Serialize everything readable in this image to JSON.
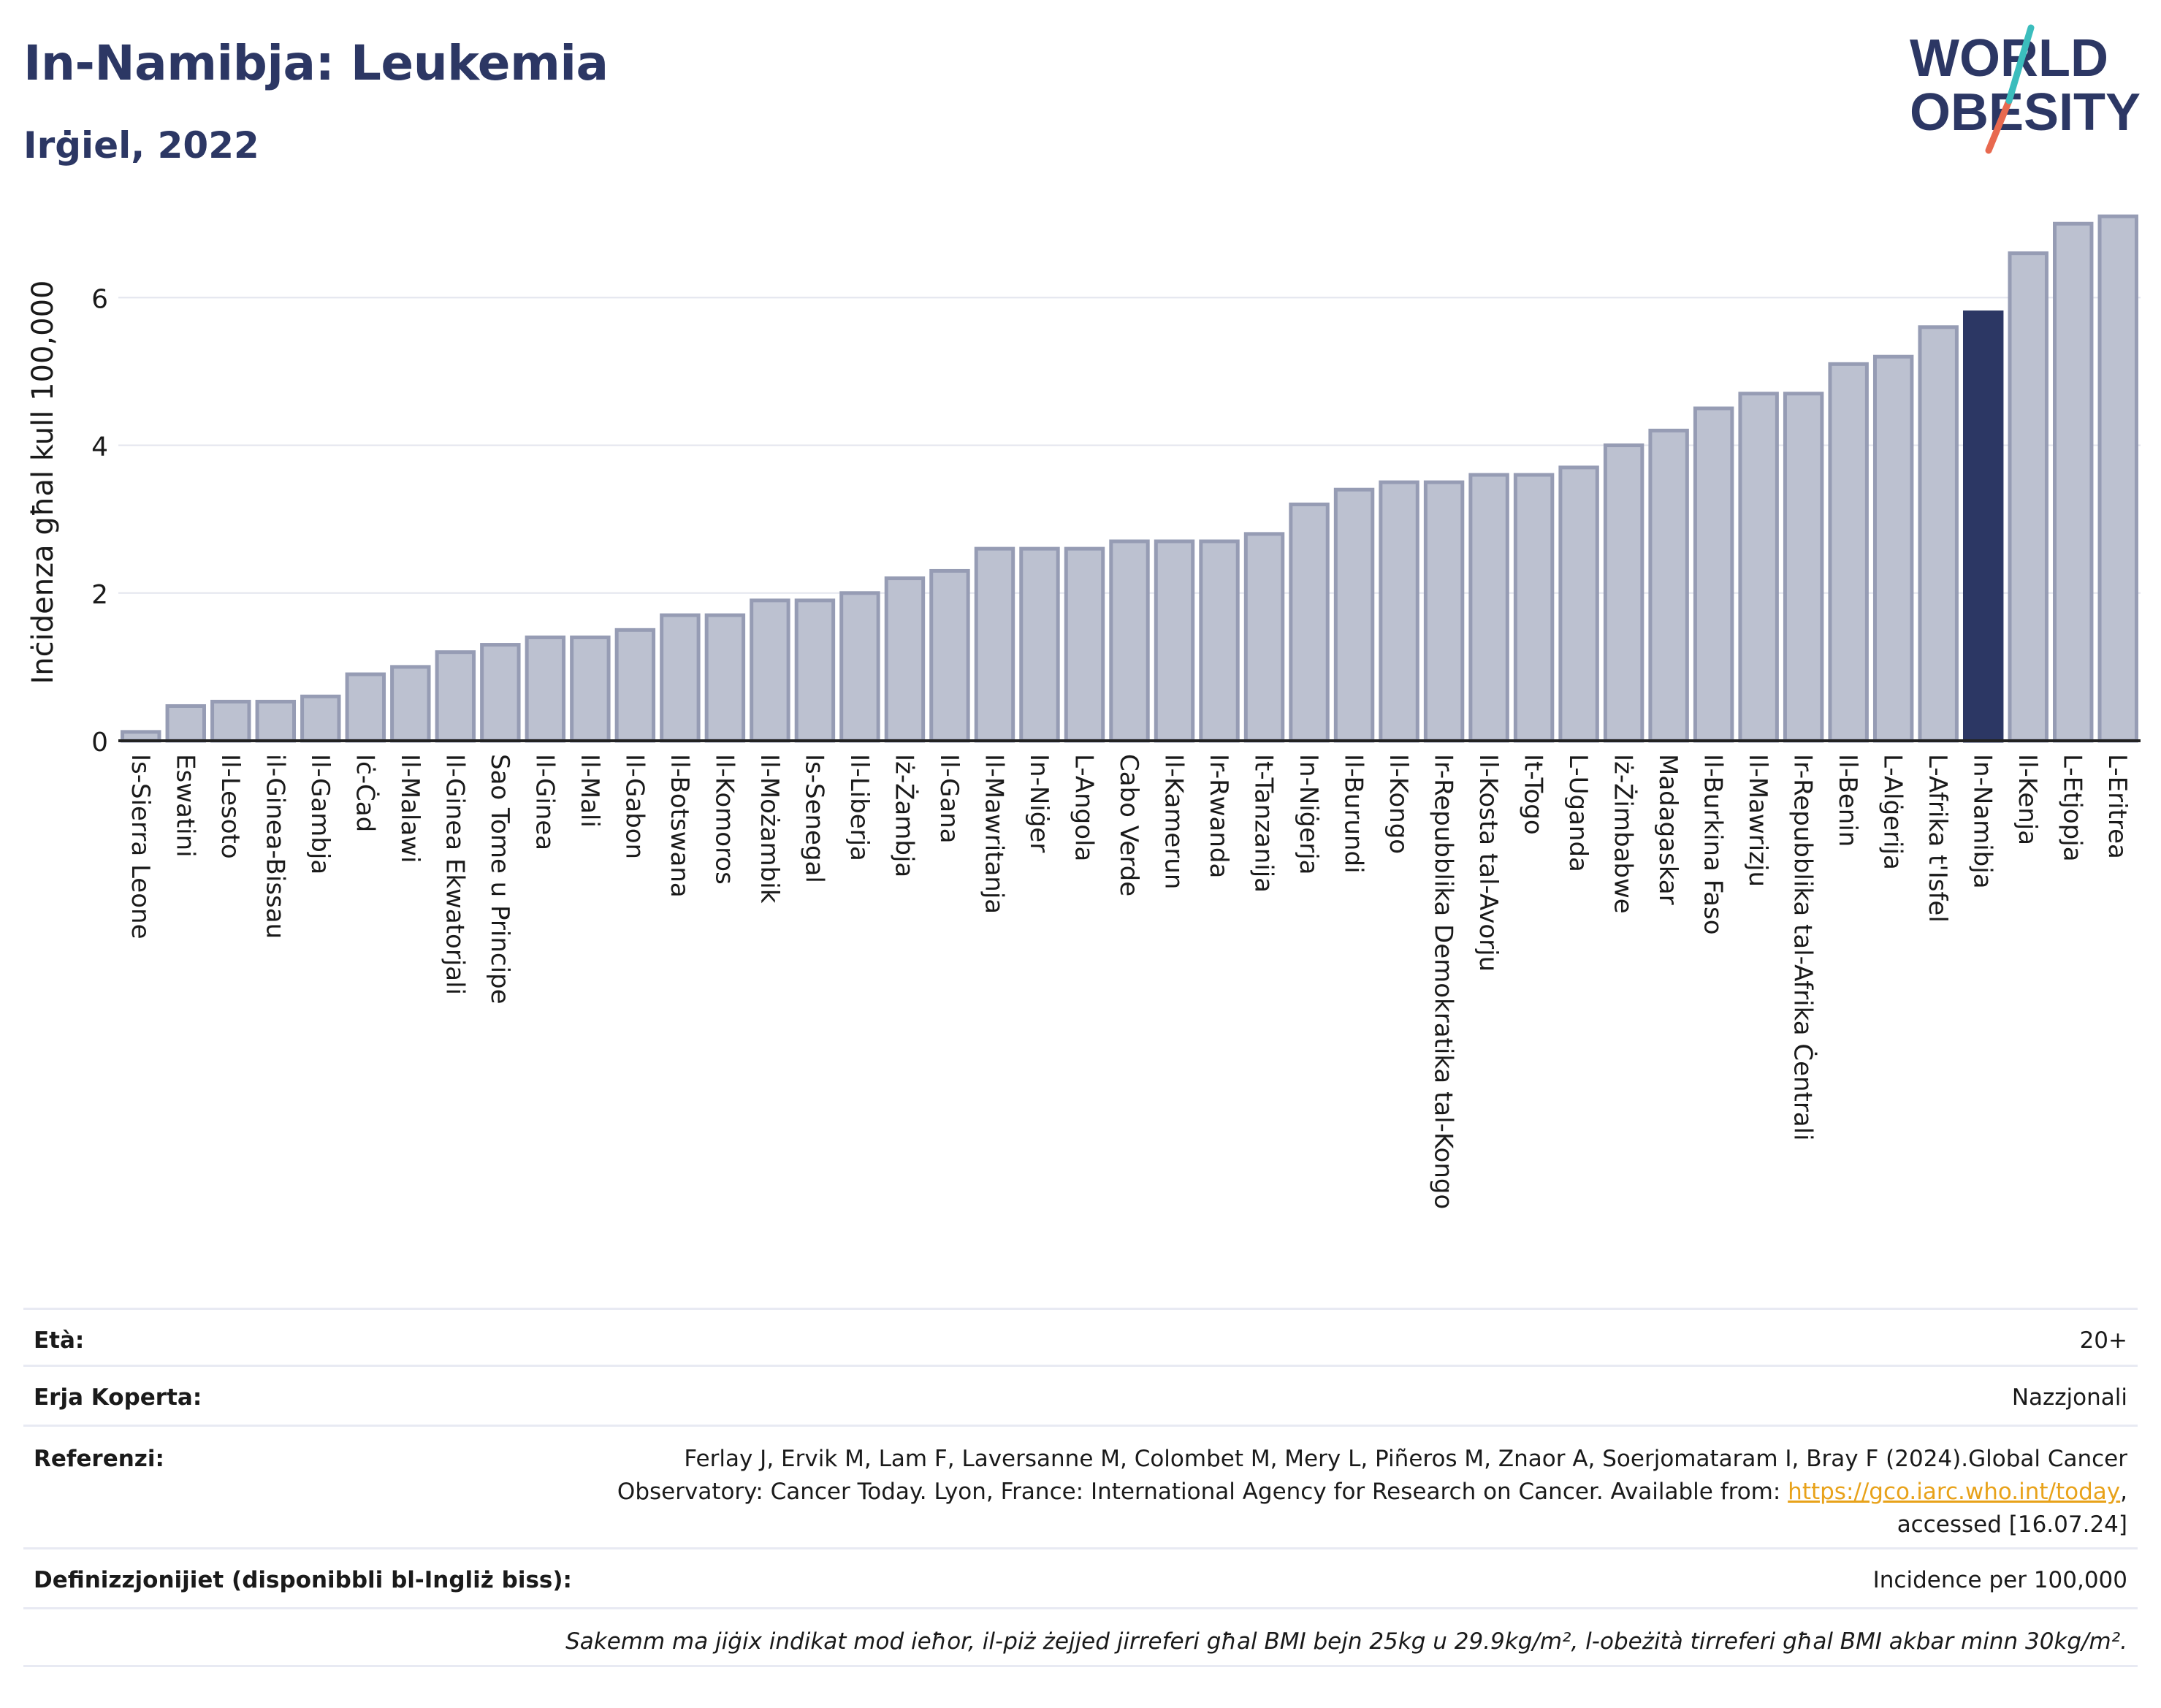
{
  "title": "In-Namibja: Leukemia",
  "subtitle": "Irġiel, 2022",
  "logo": {
    "line1": "WORLD",
    "line2": "OBESITY"
  },
  "colors": {
    "bar": "#bcc1d0",
    "bar_stroke": "#969cb4",
    "highlight": "#2c3764",
    "text": "#2c3764",
    "logo_slash_red": "#e8694f",
    "logo_slash_teal": "#3bbdbd"
  },
  "chart_data": {
    "type": "bar",
    "ylabel": "Inċidenza għal kull 100,000",
    "xlabel": "",
    "ylim": [
      0,
      7.2
    ],
    "yticks": [
      0,
      2,
      4,
      6
    ],
    "grid": true,
    "highlight": "In-Namibja",
    "categories": [
      "Is-Sierra Leone",
      "Eswatini",
      "Il-Lesoto",
      "il-Ginea-Bissau",
      "Il-Gambja",
      "Iċ-Ċad",
      "Il-Malawi",
      "Il-Ginea Ekwatorjali",
      "Sao Tome u Principe",
      "Il-Ginea",
      "Il-Mali",
      "Il-Gabon",
      "Il-Botswana",
      "Il-Komoros",
      "Il-Możambik",
      "Is-Senegal",
      "Il-Liberja",
      "Iż-Żambja",
      "Il-Gana",
      "Il-Mawritanja",
      "In-Niġer",
      "L-Angola",
      "Cabo Verde",
      "Il-Kamerun",
      "Ir-Rwanda",
      "It-Tanzanija",
      "In-Niġerja",
      "Il-Burundi",
      "Il-Kongo",
      "Ir-Repubblika Demokratika tal-Kongo",
      "Il-Kosta tal-Avorju",
      "It-Togo",
      "L-Uganda",
      "Iż-Żimbabwe",
      "Madagaskar",
      "Il-Burkina Faso",
      "Il-Mawrizju",
      "Ir-Repubblika tal-Afrika Ċentrali",
      "Il-Benin",
      "L-Alġerija",
      "L-Afrika t'Isfel",
      "In-Namibja",
      "Il-Kenja",
      "L-Etjopja",
      "L-Eritrea"
    ],
    "values": [
      0.12,
      0.47,
      0.53,
      0.53,
      0.6,
      0.9,
      1.0,
      1.2,
      1.3,
      1.4,
      1.4,
      1.5,
      1.7,
      1.7,
      1.9,
      1.9,
      2.0,
      2.2,
      2.3,
      2.6,
      2.6,
      2.6,
      2.7,
      2.7,
      2.7,
      2.8,
      3.2,
      3.4,
      3.5,
      3.5,
      3.6,
      3.6,
      3.7,
      4.0,
      4.2,
      4.5,
      4.7,
      4.7,
      5.1,
      5.2,
      5.6,
      5.8,
      6.6,
      7.0,
      7.1
    ]
  },
  "meta": {
    "age_label": "Età:",
    "age_value": "20+",
    "area_label": "Erja Koperta:",
    "area_value": "Nazzjonali",
    "ref_label": "Referenzi:",
    "ref_line1": "Ferlay J, Ervik M, Lam F, Laversanne M, Colombet M, Mery L, Piñeros M, Znaor A, Soerjomataram I, Bray F (2024).Global Cancer",
    "ref_line2_pre": "Observatory: Cancer Today. Lyon, France: International Agency for Research on Cancer. Available from: ",
    "ref_link": "https://gco.iarc.who.int/today",
    "ref_line2_post": ",",
    "ref_line3": "accessed [16.07.24]",
    "def_label": "Definizzjonijiet (disponibbli bl-Ingliż biss):",
    "def_value": "Incidence per 100,000",
    "note": "Sakemm ma jiġix indikat mod ieħor, il-piż żejjed jirreferi għal BMI bejn 25kg u 29.9kg/m², l-obeżità tirreferi għal BMI akbar minn 30kg/m²."
  }
}
